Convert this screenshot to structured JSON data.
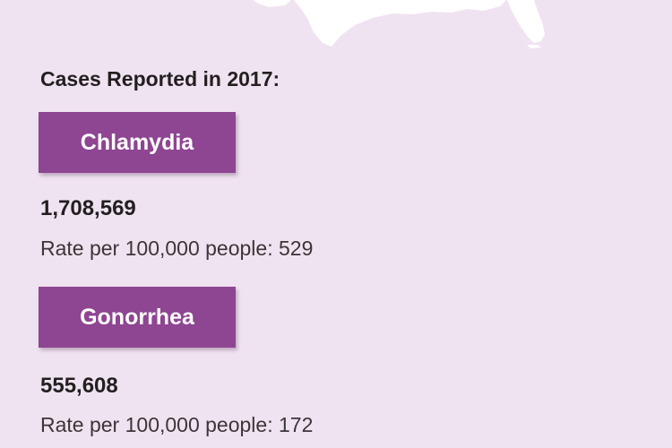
{
  "heading": "Cases Reported in 2017:",
  "diseases": [
    {
      "name": "Chlamydia",
      "cases": "1,708,569",
      "rate_line": "Rate per 100,000 people: 529"
    },
    {
      "name": "Gonorrhea",
      "cases": "555,608",
      "rate_line": "Rate per 100,000 people: 172"
    }
  ],
  "colors": {
    "background": "#f0e3f1",
    "label_fill": "#8e4592",
    "map_land": "#ffffff"
  },
  "map_fragment_icon": "us-map-icon"
}
